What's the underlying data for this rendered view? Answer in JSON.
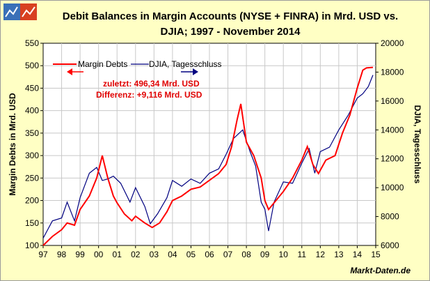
{
  "header": {
    "title_line1": "Debit Balances in Margin Accounts (NYSE + FINRA) in Mrd. USD vs.",
    "title_line2": "DJIA; 1997 - November 2014"
  },
  "footer": {
    "source": "Markt-Daten.de"
  },
  "annotation": {
    "line1": "zuletzt: 496,34 Mrd. USD",
    "line2": "Differenz: +9,116 Mrd. USD"
  },
  "colors": {
    "margin": "#ff0000",
    "djia": "#000080",
    "background": "#ffffc4",
    "plot_bg": "#ffffff"
  },
  "chart_data": {
    "type": "line",
    "title": "Debit Balances in Margin Accounts (NYSE + FINRA) in Mrd. USD vs. DJIA; 1997 - November 2014",
    "xlabel": "",
    "ylabel_left": "Margin Debts in Mrd. USD",
    "ylabel_right": "DJIA, Tagesschluss",
    "x_ticks": [
      "97",
      "98",
      "99",
      "00",
      "01",
      "02",
      "03",
      "04",
      "05",
      "06",
      "07",
      "08",
      "09",
      "10",
      "11",
      "12",
      "13",
      "14",
      "15"
    ],
    "xlim": [
      1997,
      2015
    ],
    "ylim_left": [
      100,
      550
    ],
    "yticks_left": [
      "100",
      "150",
      "200",
      "250",
      "300",
      "350",
      "400",
      "450",
      "500",
      "550"
    ],
    "ylim_right": [
      6000,
      20000
    ],
    "yticks_right": [
      "6000",
      "8000",
      "10000",
      "12000",
      "14000",
      "16000",
      "18000",
      "20000"
    ],
    "grid": true,
    "legend_position": "top-left",
    "series": [
      {
        "name": "Margin Debts",
        "axis": "left",
        "x": [
          1997.0,
          1997.5,
          1998.0,
          1998.3,
          1998.7,
          1999.0,
          1999.5,
          1999.9,
          2000.2,
          2000.5,
          2000.8,
          2001.0,
          2001.4,
          2001.8,
          2002.0,
          2002.5,
          2002.9,
          2003.3,
          2003.7,
          2004.0,
          2004.5,
          2005.0,
          2005.5,
          2006.0,
          2006.5,
          2006.9,
          2007.2,
          2007.5,
          2007.7,
          2008.0,
          2008.4,
          2008.8,
          2009.0,
          2009.2,
          2009.6,
          2010.0,
          2010.5,
          2011.0,
          2011.3,
          2011.6,
          2011.9,
          2012.3,
          2012.8,
          2013.2,
          2013.6,
          2014.0,
          2014.3,
          2014.5,
          2014.85
        ],
        "y": [
          100,
          120,
          135,
          150,
          145,
          180,
          210,
          250,
          300,
          250,
          210,
          195,
          170,
          155,
          165,
          150,
          140,
          150,
          175,
          200,
          210,
          225,
          230,
          245,
          260,
          280,
          320,
          380,
          415,
          330,
          300,
          250,
          200,
          180,
          200,
          220,
          250,
          290,
          320,
          280,
          260,
          290,
          300,
          350,
          390,
          450,
          490,
          495,
          496.34
        ]
      },
      {
        "name": "DJIA, Tagesschluss",
        "axis": "right",
        "x": [
          1997.0,
          1997.5,
          1998.0,
          1998.3,
          1998.7,
          1999.0,
          1999.5,
          1999.9,
          2000.2,
          2000.5,
          2000.8,
          2001.2,
          2001.7,
          2002.0,
          2002.5,
          2002.8,
          2003.2,
          2003.7,
          2004.0,
          2004.5,
          2005.0,
          2005.5,
          2006.0,
          2006.5,
          2006.9,
          2007.3,
          2007.8,
          2008.2,
          2008.5,
          2008.8,
          2009.0,
          2009.2,
          2009.5,
          2010.0,
          2010.5,
          2011.0,
          2011.4,
          2011.7,
          2012.0,
          2012.5,
          2013.0,
          2013.5,
          2014.0,
          2014.3,
          2014.6,
          2014.85
        ],
        "y": [
          6500,
          7700,
          7900,
          9000,
          7700,
          9300,
          11000,
          11400,
          10500,
          10600,
          10800,
          10300,
          9000,
          10000,
          8700,
          7500,
          8200,
          9300,
          10500,
          10100,
          10600,
          10300,
          11000,
          11300,
          12300,
          13400,
          14000,
          12500,
          11500,
          9000,
          8500,
          7000,
          9000,
          10400,
          10300,
          11700,
          12700,
          11000,
          12500,
          12800,
          14000,
          15000,
          16200,
          16500,
          17000,
          17800
        ]
      }
    ]
  },
  "legend": {
    "margin_label": "Margin Debts",
    "djia_label": "DJIA, Tagesschluss"
  }
}
